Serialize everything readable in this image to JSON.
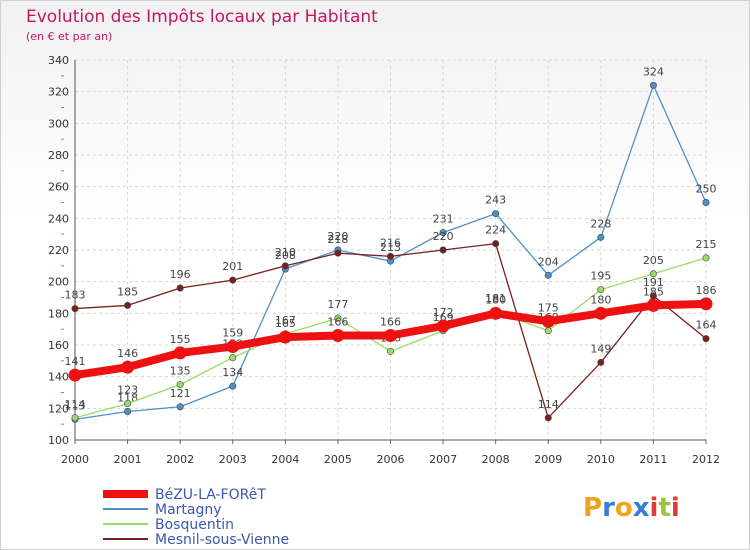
{
  "chart_data": {
    "type": "line",
    "title": "Evolution des Impôts locaux par Habitant",
    "subtitle": "(en € et par an)",
    "x": [
      "2000",
      "2001",
      "2002",
      "2003",
      "2004",
      "2005",
      "2006",
      "2007",
      "2008",
      "2009",
      "2010",
      "2011",
      "2012"
    ],
    "yticks": [
      100,
      120,
      140,
      160,
      180,
      200,
      220,
      240,
      260,
      280,
      300,
      320,
      340
    ],
    "ylim": [
      100,
      340
    ],
    "grid": true,
    "legend_position": "bottom-left",
    "series": [
      {
        "name": "BéZU-LA-FORêT",
        "color": "#ee1111",
        "values": [
          141,
          146,
          155,
          159,
          165,
          166,
          166,
          172,
          180,
          175,
          180,
          185,
          186
        ]
      },
      {
        "name": "Martagny",
        "color": "#4d90c8",
        "values": [
          113,
          118,
          121,
          134,
          208,
          220,
          213,
          231,
          243,
          204,
          228,
          324,
          250
        ]
      },
      {
        "name": "Bosquentin",
        "color": "#99dd66",
        "values": [
          114,
          123,
          135,
          152,
          167,
          177,
          156,
          169,
          181,
          169,
          195,
          205,
          215
        ]
      },
      {
        "name": "Mesnil-sous-Vienne",
        "color": "#7a1f1f",
        "values": [
          183,
          185,
          196,
          201,
          210,
          218,
          216,
          220,
          224,
          114,
          149,
          191,
          164
        ]
      }
    ]
  },
  "logo": {
    "letters": [
      "P",
      "r",
      "o",
      "x",
      "i",
      "t",
      "i"
    ],
    "colors": [
      "#f2a21b",
      "#3a7bd5",
      "#f2a21b",
      "#3a7bd5",
      "#e03a3a",
      "#9bc53d",
      "#e03a3a"
    ]
  }
}
